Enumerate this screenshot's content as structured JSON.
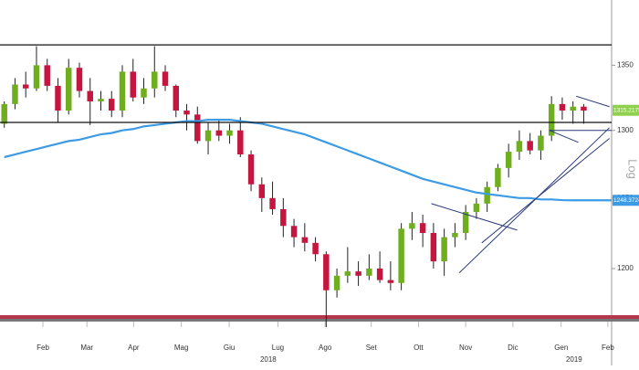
{
  "chart_data": {
    "type": "candlestick",
    "ylabel": "Log",
    "log_y": true,
    "ylim": [
      1168,
      1402
    ],
    "yticks": [
      1200,
      1250,
      1300,
      1350
    ],
    "xlim": [
      -0.4,
      56.6
    ],
    "xticks": [
      {
        "value": 3.6,
        "label": "Feb"
      },
      {
        "value": 7.7,
        "label": "Mar"
      },
      {
        "value": 12.05,
        "label": "Apr"
      },
      {
        "value": 16.5,
        "label": "Mag"
      },
      {
        "value": 20.96,
        "label": "Giu"
      },
      {
        "value": 25.5,
        "label": "Lug"
      },
      {
        "value": 29.9,
        "label": "Ago"
      },
      {
        "value": 34.2,
        "label": "Set"
      },
      {
        "value": 38.6,
        "label": "Ott"
      },
      {
        "value": 43.0,
        "label": "Nov"
      },
      {
        "value": 47.4,
        "label": "Dic"
      },
      {
        "value": 51.9,
        "label": "Gen"
      },
      {
        "value": 56.25,
        "label": "Feb"
      }
    ],
    "year_labels": [
      {
        "value": 24.6,
        "label": "2018"
      },
      {
        "value": 53.1,
        "label": "2019"
      }
    ],
    "up_color": "#6fae1e",
    "down_color": "#c4163f",
    "open": [
      1305,
      1320,
      1335,
      1332,
      1350,
      1334,
      1315,
      1348,
      1330,
      1322,
      1324,
      1315,
      1345,
      1325,
      1332,
      1345,
      1334,
      1315,
      1312,
      1292,
      1300,
      1296,
      1300,
      1282,
      1260,
      1250,
      1242,
      1230,
      1222,
      1218,
      1210,
      1185,
      1195,
      1198,
      1195,
      1200,
      1192,
      1190,
      1228,
      1232,
      1225,
      1205,
      1222,
      1225,
      1240,
      1246,
      1258,
      1272,
      1284,
      1292,
      1285,
      1296,
      1320,
      1315,
      1318
    ],
    "high": [
      1322,
      1340,
      1345,
      1365,
      1355,
      1340,
      1355,
      1352,
      1340,
      1330,
      1330,
      1350,
      1355,
      1340,
      1365,
      1350,
      1335,
      1320,
      1318,
      1306,
      1308,
      1305,
      1310,
      1285,
      1265,
      1262,
      1250,
      1235,
      1232,
      1222,
      1212,
      1200,
      1215,
      1205,
      1210,
      1212,
      1205,
      1232,
      1240,
      1238,
      1232,
      1228,
      1232,
      1245,
      1250,
      1262,
      1275,
      1290,
      1300,
      1298,
      1300,
      1326,
      1325,
      1322,
      1320
    ],
    "low": [
      1302,
      1316,
      1325,
      1330,
      1330,
      1306,
      1312,
      1325,
      1304,
      1315,
      1310,
      1310,
      1322,
      1320,
      1325,
      1330,
      1310,
      1300,
      1290,
      1282,
      1292,
      1290,
      1280,
      1255,
      1240,
      1238,
      1222,
      1215,
      1212,
      1205,
      1160,
      1180,
      1190,
      1188,
      1192,
      1190,
      1185,
      1185,
      1220,
      1215,
      1200,
      1195,
      1215,
      1220,
      1235,
      1240,
      1255,
      1265,
      1278,
      1282,
      1278,
      1292,
      1308,
      1305,
      1305
    ],
    "close": [
      1320,
      1335,
      1332,
      1350,
      1334,
      1315,
      1348,
      1330,
      1322,
      1324,
      1315,
      1345,
      1325,
      1332,
      1345,
      1334,
      1315,
      1312,
      1292,
      1300,
      1296,
      1300,
      1282,
      1260,
      1250,
      1242,
      1230,
      1222,
      1218,
      1210,
      1185,
      1195,
      1198,
      1195,
      1200,
      1192,
      1190,
      1228,
      1232,
      1225,
      1205,
      1222,
      1225,
      1240,
      1246,
      1258,
      1272,
      1284,
      1292,
      1285,
      1296,
      1320,
      1315,
      1318,
      1315
    ],
    "moving_average": {
      "color": "#3d9be6",
      "values": [
        1280,
        1282,
        1284,
        1286,
        1288,
        1290,
        1292,
        1293,
        1295,
        1297,
        1298,
        1300,
        1301,
        1303,
        1304,
        1305,
        1306,
        1307,
        1307,
        1308,
        1308,
        1308,
        1307,
        1306,
        1305,
        1303,
        1301,
        1299,
        1297,
        1294,
        1291,
        1288,
        1285,
        1282,
        1279,
        1276,
        1273,
        1270,
        1267,
        1264,
        1262,
        1260,
        1258,
        1256,
        1254,
        1253,
        1252,
        1251,
        1250,
        1250,
        1249,
        1249,
        1248.5,
        1248.4,
        1248.4
      ]
    },
    "levels": [
      1366,
      1306
    ],
    "trendlines": [
      {
        "x": [
          39.8,
          47.8
        ],
        "y": [
          1246,
          1227
        ]
      },
      {
        "x": [
          42.4,
          56.4
        ],
        "y": [
          1197,
          1302
        ]
      },
      {
        "x": [
          44.5,
          56.4
        ],
        "y": [
          1218,
          1294
        ]
      },
      {
        "x": [
          50.8,
          56.6
        ],
        "y": [
          1300,
          1300
        ]
      },
      {
        "x": [
          50.8,
          53.5
        ],
        "y": [
          1300,
          1291
        ]
      },
      {
        "x": [
          53.3,
          56.4
        ],
        "y": [
          1326,
          1318
        ]
      }
    ],
    "price_labels": [
      {
        "value": 1315.2175,
        "color": "#8fd14f"
      },
      {
        "value": 1248.3724,
        "color": "#3d9be6"
      }
    ]
  }
}
